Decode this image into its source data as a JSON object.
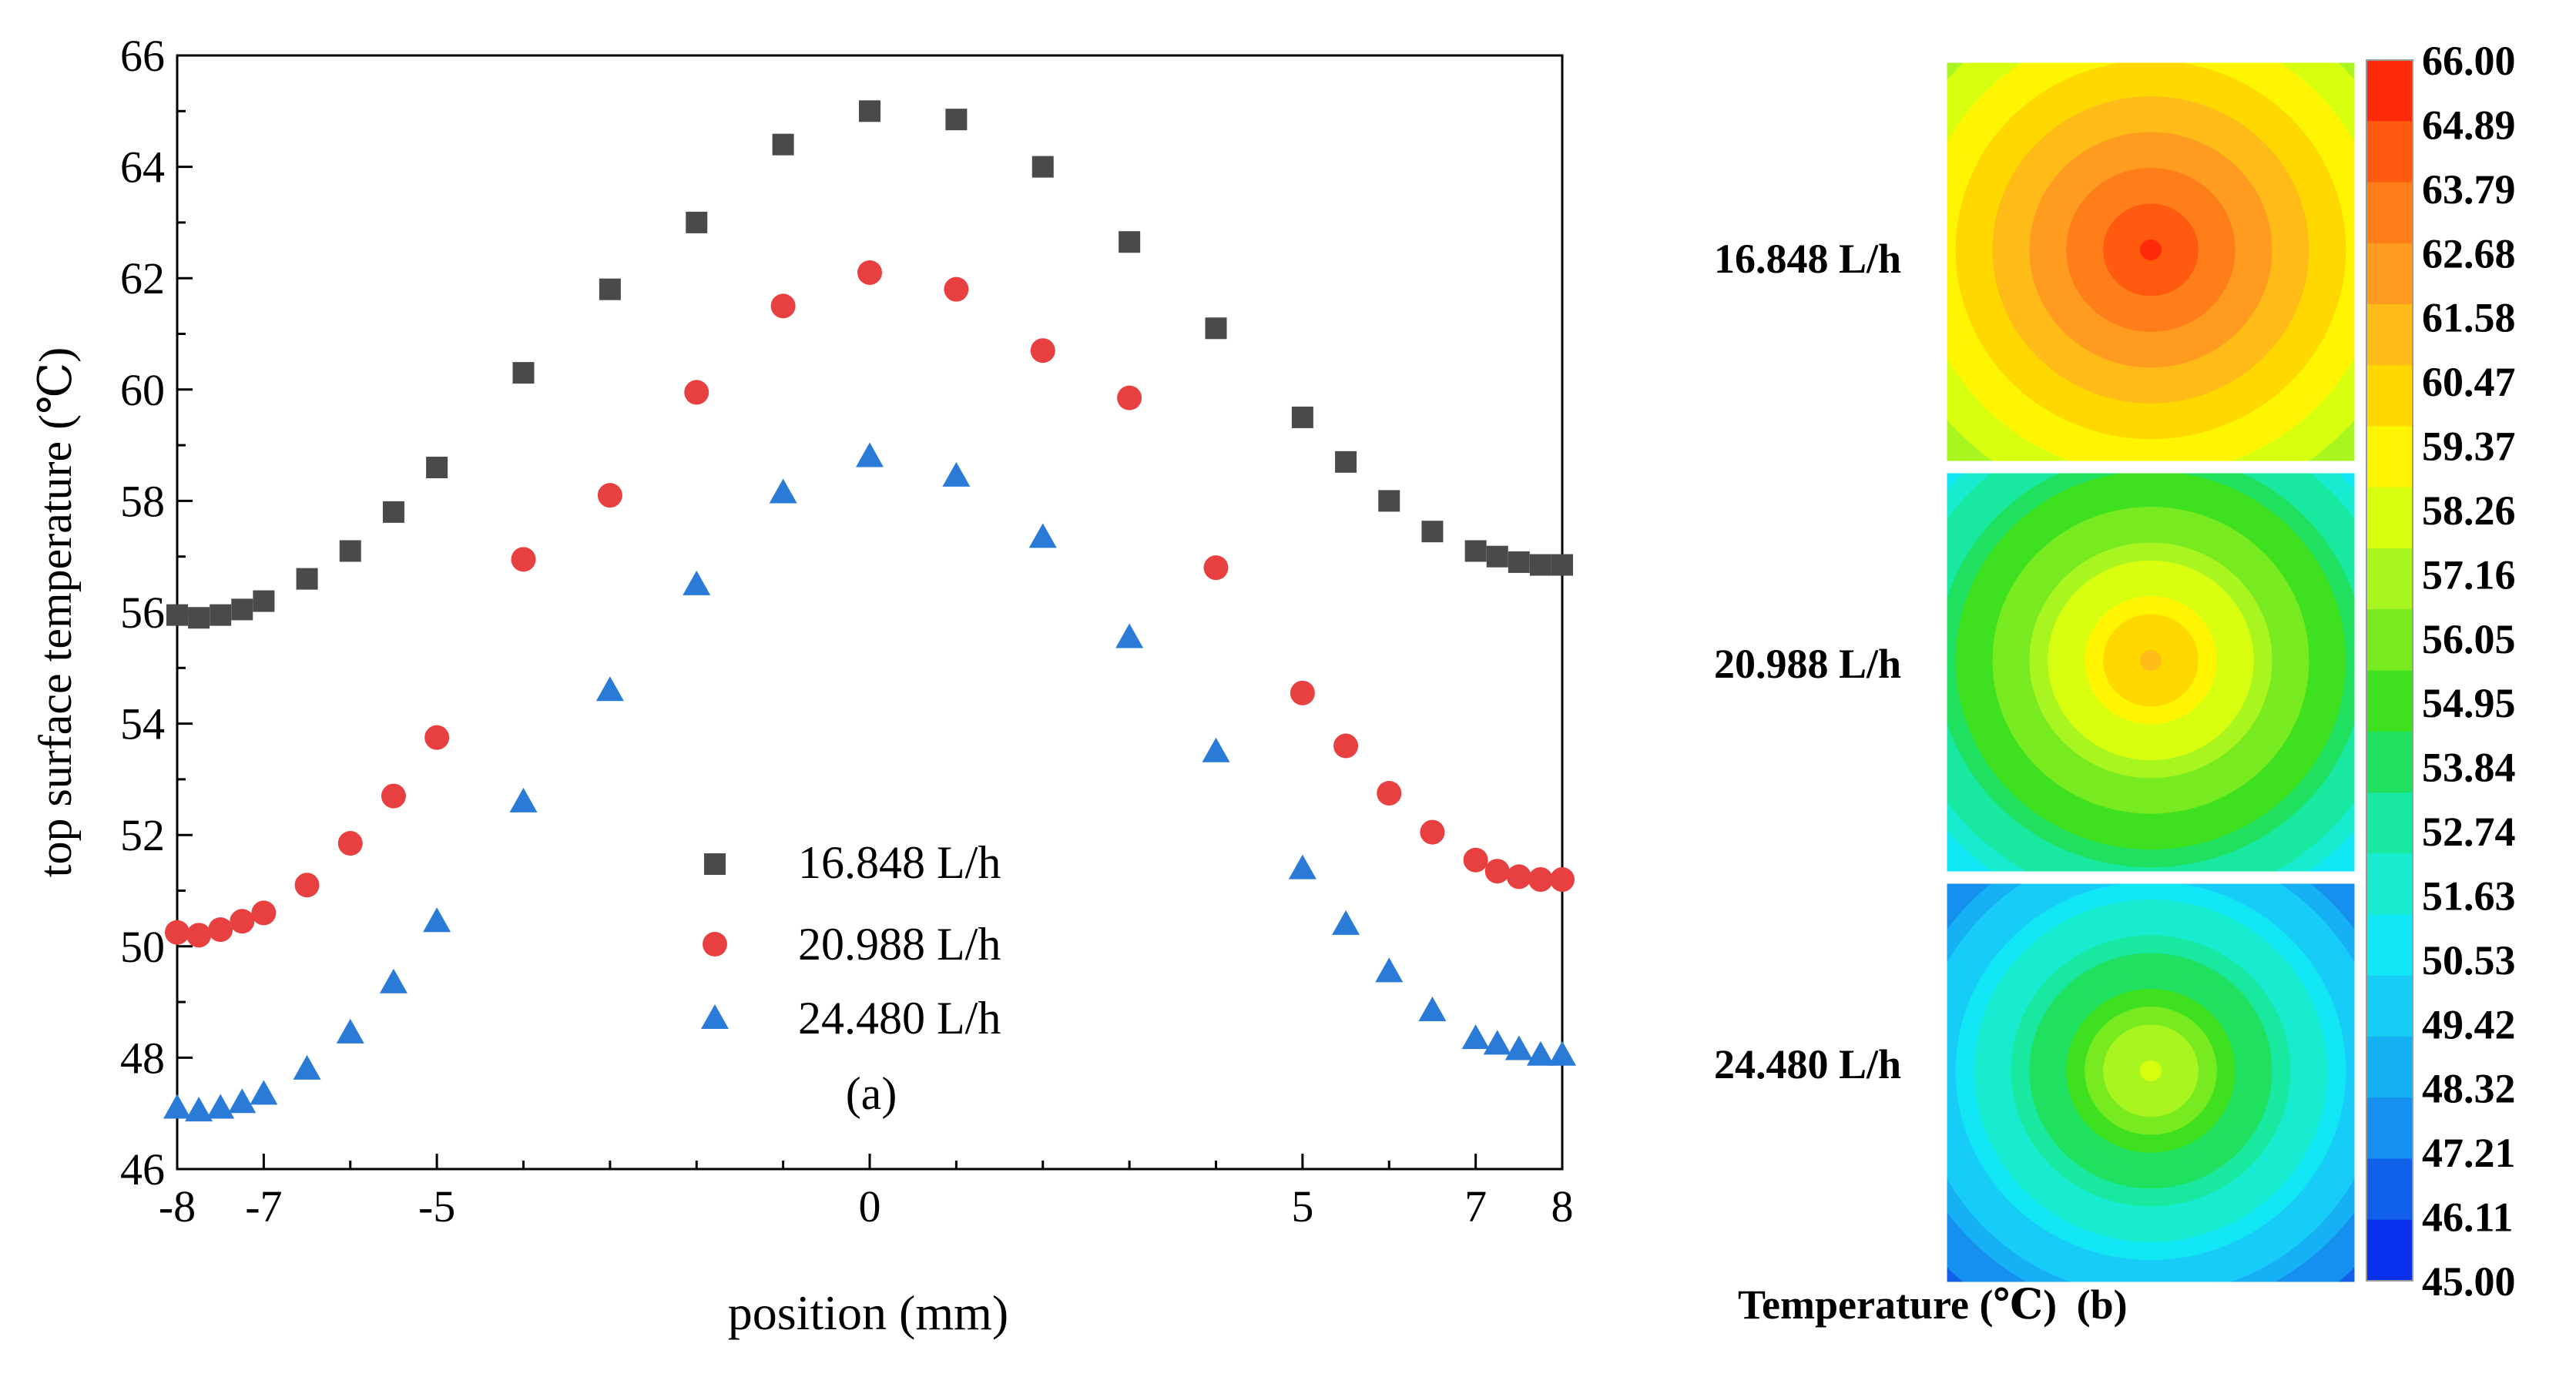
{
  "chart_data": [
    {
      "type": "scatter",
      "panel_label": "(a)",
      "title": "",
      "xlabel": "position (mm)",
      "ylabel": "top surface temperature (℃)",
      "xlim": [
        -8,
        8
      ],
      "ylim": [
        46,
        66
      ],
      "xticks": [
        -8,
        -7,
        -5,
        0,
        5,
        7,
        8
      ],
      "yticks": [
        46,
        48,
        50,
        52,
        54,
        56,
        58,
        60,
        62,
        64,
        66
      ],
      "grid": false,
      "legend_position": "bottom-center",
      "series": [
        {
          "name": "16.848 L/h",
          "marker": "square",
          "color": "#4a4a4a",
          "x": [
            -8,
            -7.75,
            -7.5,
            -7.25,
            -7,
            -6.5,
            -6,
            -5.5,
            -5,
            -4,
            -3,
            -2,
            -1,
            0,
            1,
            2,
            3,
            4,
            5,
            5.5,
            6,
            6.5,
            7,
            7.25,
            7.5,
            7.75,
            8
          ],
          "y": [
            55.95,
            55.9,
            55.95,
            56.05,
            56.2,
            56.6,
            57.1,
            57.8,
            58.6,
            60.3,
            61.8,
            63.0,
            64.4,
            65.0,
            64.85,
            64.0,
            62.65,
            61.1,
            59.5,
            58.7,
            58.0,
            57.45,
            57.1,
            57.0,
            56.9,
            56.85,
            56.85
          ]
        },
        {
          "name": "20.988 L/h",
          "marker": "circle",
          "color": "#e84040",
          "x": [
            -8,
            -7.75,
            -7.5,
            -7.25,
            -7,
            -6.5,
            -6,
            -5.5,
            -5,
            -4,
            -3,
            -2,
            -1,
            0,
            1,
            2,
            3,
            4,
            5,
            5.5,
            6,
            6.5,
            7,
            7.25,
            7.5,
            7.75,
            8
          ],
          "y": [
            50.25,
            50.2,
            50.3,
            50.45,
            50.6,
            51.1,
            51.85,
            52.7,
            53.75,
            56.95,
            58.1,
            59.95,
            61.5,
            62.1,
            61.8,
            60.7,
            59.85,
            56.8,
            54.55,
            53.6,
            52.75,
            52.05,
            51.55,
            51.35,
            51.25,
            51.2,
            51.2
          ]
        },
        {
          "name": "24.480 L/h",
          "marker": "triangle",
          "color": "#2a7ad8",
          "x": [
            -8,
            -7.75,
            -7.5,
            -7.25,
            -7,
            -6.5,
            -6,
            -5.5,
            -5,
            -4,
            -3,
            -2,
            -1,
            0,
            1,
            2,
            3,
            4,
            5,
            5.5,
            6,
            6.5,
            7,
            7.25,
            7.5,
            7.75,
            8
          ],
          "y": [
            47.1,
            47.05,
            47.1,
            47.2,
            47.35,
            47.8,
            48.45,
            49.35,
            50.45,
            52.6,
            54.6,
            56.5,
            58.15,
            58.8,
            58.45,
            57.35,
            55.55,
            53.5,
            51.4,
            50.4,
            49.55,
            48.85,
            48.35,
            48.25,
            48.15,
            48.05,
            48.05
          ]
        }
      ]
    },
    {
      "type": "heatmap",
      "panel_label": "(b)",
      "colorbar_title": "Temperature (℃)",
      "colorbar_min": 45.0,
      "colorbar_max": 66.0,
      "colorbar_tick_labels": [
        "66.00",
        "64.89",
        "63.79",
        "62.68",
        "61.58",
        "60.47",
        "59.37",
        "58.26",
        "57.16",
        "56.05",
        "54.95",
        "53.84",
        "52.74",
        "51.63",
        "50.53",
        "49.42",
        "48.32",
        "47.21",
        "46.11",
        "45.00"
      ],
      "colorbar_colors": [
        "#ff2a0a",
        "#ff5a10",
        "#ff7e1a",
        "#ff9c20",
        "#ffbb18",
        "#ffd800",
        "#fff500",
        "#d8ff10",
        "#a8f520",
        "#78ea20",
        "#3ee020",
        "#20e060",
        "#18e8a0",
        "#18ecd0",
        "#10e6f4",
        "#18ccf8",
        "#16b0f4",
        "#1690ee",
        "#1060ea",
        "#0830ee"
      ],
      "maps": [
        {
          "label": "16.848 L/h",
          "peak_temperature": 65.2,
          "edge_temperature": 56.6
        },
        {
          "label": "20.988 L/h",
          "peak_temperature": 61.0,
          "edge_temperature": 50.6
        },
        {
          "label": "24.480 L/h",
          "peak_temperature": 58.0,
          "edge_temperature": 46.6
        }
      ]
    }
  ]
}
